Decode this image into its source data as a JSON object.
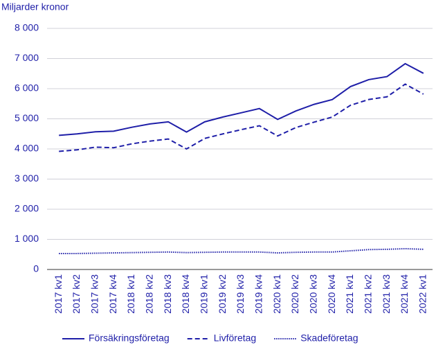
{
  "chart_data": {
    "type": "line",
    "y_axis_label": "Miljarder kronor",
    "categories": [
      "2017 kv1",
      "2017 kv2",
      "2017 kv3",
      "2017 kv4",
      "2018 kv1",
      "2018 kv2",
      "2018 kv3",
      "2018 kv4",
      "2019 kv1",
      "2019 kv2",
      "2019 kv3",
      "2019 kv4",
      "2020 kv1",
      "2020 kv2",
      "2020 kv3",
      "2020 kv4",
      "2021 kv1",
      "2021 kv2",
      "2021 kv3",
      "2021 kv4",
      "2022 kv1"
    ],
    "series": [
      {
        "name": "Försäkringsföretag",
        "color": "#1e1ea8",
        "style": "solid",
        "values": [
          4450,
          4500,
          4570,
          4590,
          4720,
          4830,
          4900,
          4560,
          4900,
          5060,
          5200,
          5340,
          4980,
          5260,
          5480,
          5640,
          6070,
          6300,
          6400,
          6830,
          6510
        ]
      },
      {
        "name": "Livföretag",
        "color": "#1e1ea8",
        "style": "dashed",
        "values": [
          3920,
          3970,
          4060,
          4040,
          4170,
          4260,
          4330,
          4000,
          4350,
          4500,
          4640,
          4770,
          4430,
          4710,
          4890,
          5060,
          5450,
          5640,
          5730,
          6150,
          5820
        ]
      },
      {
        "name": "Skadeföretag",
        "color": "#1e1ea8",
        "style": "dotted",
        "values": [
          530,
          530,
          540,
          550,
          560,
          570,
          580,
          560,
          570,
          580,
          580,
          580,
          550,
          570,
          580,
          580,
          620,
          660,
          670,
          690,
          670
        ]
      }
    ],
    "ylim": [
      0,
      8000
    ],
    "yticks": [
      0,
      {
        "value": 1000,
        "label": "1 000"
      },
      {
        "value": 2000,
        "label": "2 000"
      },
      {
        "value": 3000,
        "label": "3 000"
      },
      {
        "value": 4000,
        "label": "4 000"
      },
      {
        "value": 5000,
        "label": "5 000"
      },
      {
        "value": 6000,
        "label": "6 000"
      },
      {
        "value": 7000,
        "label": "7 000"
      },
      {
        "value": 8000,
        "label": "8 000"
      }
    ],
    "grid": true
  }
}
